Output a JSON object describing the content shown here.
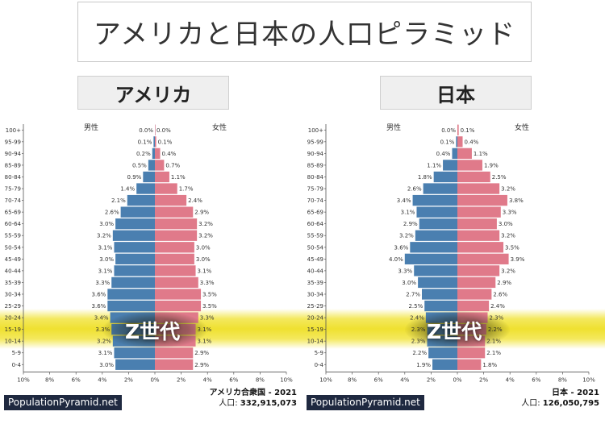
{
  "title": "アメリカと日本の人口ピラミッド",
  "highlight_label": "Z世代",
  "colors": {
    "male": "#4a7fb0",
    "female": "#e07a8a",
    "highlight": "#eedd22",
    "badge_bg": "#1f2940"
  },
  "chart_data": [
    {
      "type": "bar",
      "panel_title": "アメリカ",
      "male_label": "男性",
      "female_label": "女性",
      "categories": [
        "100+",
        "95-99",
        "90-94",
        "85-89",
        "80-84",
        "75-79",
        "70-74",
        "65-69",
        "60-64",
        "55-59",
        "50-54",
        "45-49",
        "40-44",
        "35-39",
        "30-34",
        "25-29",
        "20-24",
        "15-19",
        "10-14",
        "5-9",
        "0-4"
      ],
      "series": [
        {
          "name": "男性",
          "values": [
            0.0,
            0.1,
            0.2,
            0.5,
            0.9,
            1.4,
            2.1,
            2.6,
            3.0,
            3.2,
            3.1,
            3.0,
            3.1,
            3.3,
            3.6,
            3.6,
            3.4,
            3.3,
            3.2,
            3.1,
            3.0
          ]
        },
        {
          "name": "女性",
          "values": [
            0.0,
            0.1,
            0.4,
            0.7,
            1.1,
            1.7,
            2.4,
            2.9,
            3.2,
            3.2,
            3.0,
            3.0,
            3.1,
            3.3,
            3.5,
            3.5,
            3.3,
            3.1,
            3.1,
            2.9,
            2.9
          ]
        }
      ],
      "x_ticks": [
        "10%",
        "8%",
        "6%",
        "4%",
        "2%",
        "0%",
        "2%",
        "4%",
        "6%",
        "8%",
        "10%"
      ],
      "xlim": [
        -10,
        10
      ],
      "highlighted_categories": [
        "20-24",
        "15-19",
        "10-14"
      ],
      "source": "PopulationPyramid.net",
      "country_year": "アメリカ合衆国 - 2021",
      "population_label": "人口:",
      "population": "332,915,073"
    },
    {
      "type": "bar",
      "panel_title": "日本",
      "male_label": "男性",
      "female_label": "女性",
      "categories": [
        "100+",
        "95-99",
        "90-94",
        "85-89",
        "80-84",
        "75-79",
        "70-74",
        "65-69",
        "60-64",
        "55-59",
        "50-54",
        "45-49",
        "40-44",
        "35-39",
        "30-34",
        "25-29",
        "20-24",
        "15-19",
        "10-14",
        "5-9",
        "0-4"
      ],
      "series": [
        {
          "name": "男性",
          "values": [
            0.0,
            0.1,
            0.4,
            1.1,
            1.8,
            2.6,
            3.4,
            3.1,
            2.9,
            3.2,
            3.6,
            4.0,
            3.3,
            3.0,
            2.7,
            2.5,
            2.4,
            2.3,
            2.3,
            2.2,
            1.9
          ]
        },
        {
          "name": "女性",
          "values": [
            0.1,
            0.4,
            1.1,
            1.9,
            2.5,
            3.2,
            3.8,
            3.3,
            3.0,
            3.2,
            3.5,
            3.9,
            3.2,
            2.9,
            2.6,
            2.4,
            2.3,
            2.2,
            2.1,
            2.1,
            1.8
          ]
        }
      ],
      "x_ticks": [
        "10%",
        "8%",
        "6%",
        "4%",
        "2%",
        "0%",
        "2%",
        "4%",
        "6%",
        "8%",
        "10%"
      ],
      "xlim": [
        -10,
        10
      ],
      "highlighted_categories": [
        "20-24",
        "15-19",
        "10-14"
      ],
      "source": "PopulationPyramid.net",
      "country_year": "日本 - 2021",
      "population_label": "人口:",
      "population": "126,050,795"
    }
  ]
}
